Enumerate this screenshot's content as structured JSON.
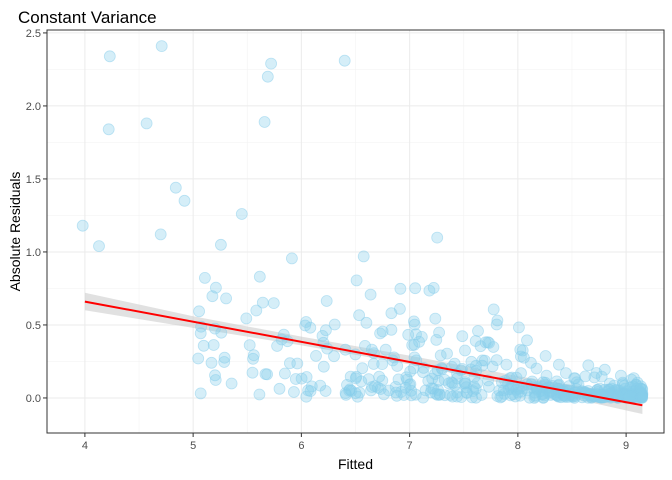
{
  "chart_data": {
    "type": "scatter",
    "title": "Constant Variance",
    "xlabel": "Fitted",
    "ylabel": "Absolute Residuals",
    "xlim": [
      3.65,
      9.35
    ],
    "ylim": [
      -0.24,
      2.52
    ],
    "x_ticks": [
      4,
      5,
      6,
      7,
      8,
      9
    ],
    "y_ticks": [
      0.0,
      0.5,
      1.0,
      1.5,
      2.0,
      2.5
    ],
    "x_tick_labels": [
      "4",
      "5",
      "6",
      "7",
      "8",
      "9"
    ],
    "y_tick_labels": [
      "0.0",
      "0.5",
      "1.0",
      "1.5",
      "2.0",
      "2.5"
    ],
    "grid": true,
    "point_color": "#87CEEB",
    "point_alpha": 0.35,
    "fit_line_color": "#FF0000",
    "confidence_band_color": "#C8C8C8",
    "fit_line": {
      "x": [
        4.0,
        9.15
      ],
      "y": [
        0.66,
        -0.05
      ]
    },
    "confidence_band": {
      "x": [
        4.0,
        5.0,
        6.0,
        7.0,
        8.0,
        9.15
      ],
      "upper": [
        0.72,
        0.56,
        0.42,
        0.29,
        0.15,
        0.01
      ],
      "lower": [
        0.6,
        0.48,
        0.36,
        0.23,
        0.08,
        -0.11
      ]
    },
    "outliers": {
      "x": [
        3.98,
        4.13,
        4.22,
        4.23,
        4.57,
        4.7,
        4.71,
        4.84,
        4.92,
        5.45,
        5.66,
        5.69,
        5.72,
        6.4
      ],
      "y": [
        1.18,
        1.04,
        1.84,
        2.34,
        1.88,
        1.12,
        2.41,
        1.44,
        1.35,
        1.26,
        1.89,
        2.2,
        2.29,
        2.31
      ]
    },
    "bulk": {
      "n": 480,
      "x_range": [
        4.3,
        9.15
      ],
      "trend": {
        "intercept": 1.18,
        "slope": -0.13
      }
    }
  }
}
